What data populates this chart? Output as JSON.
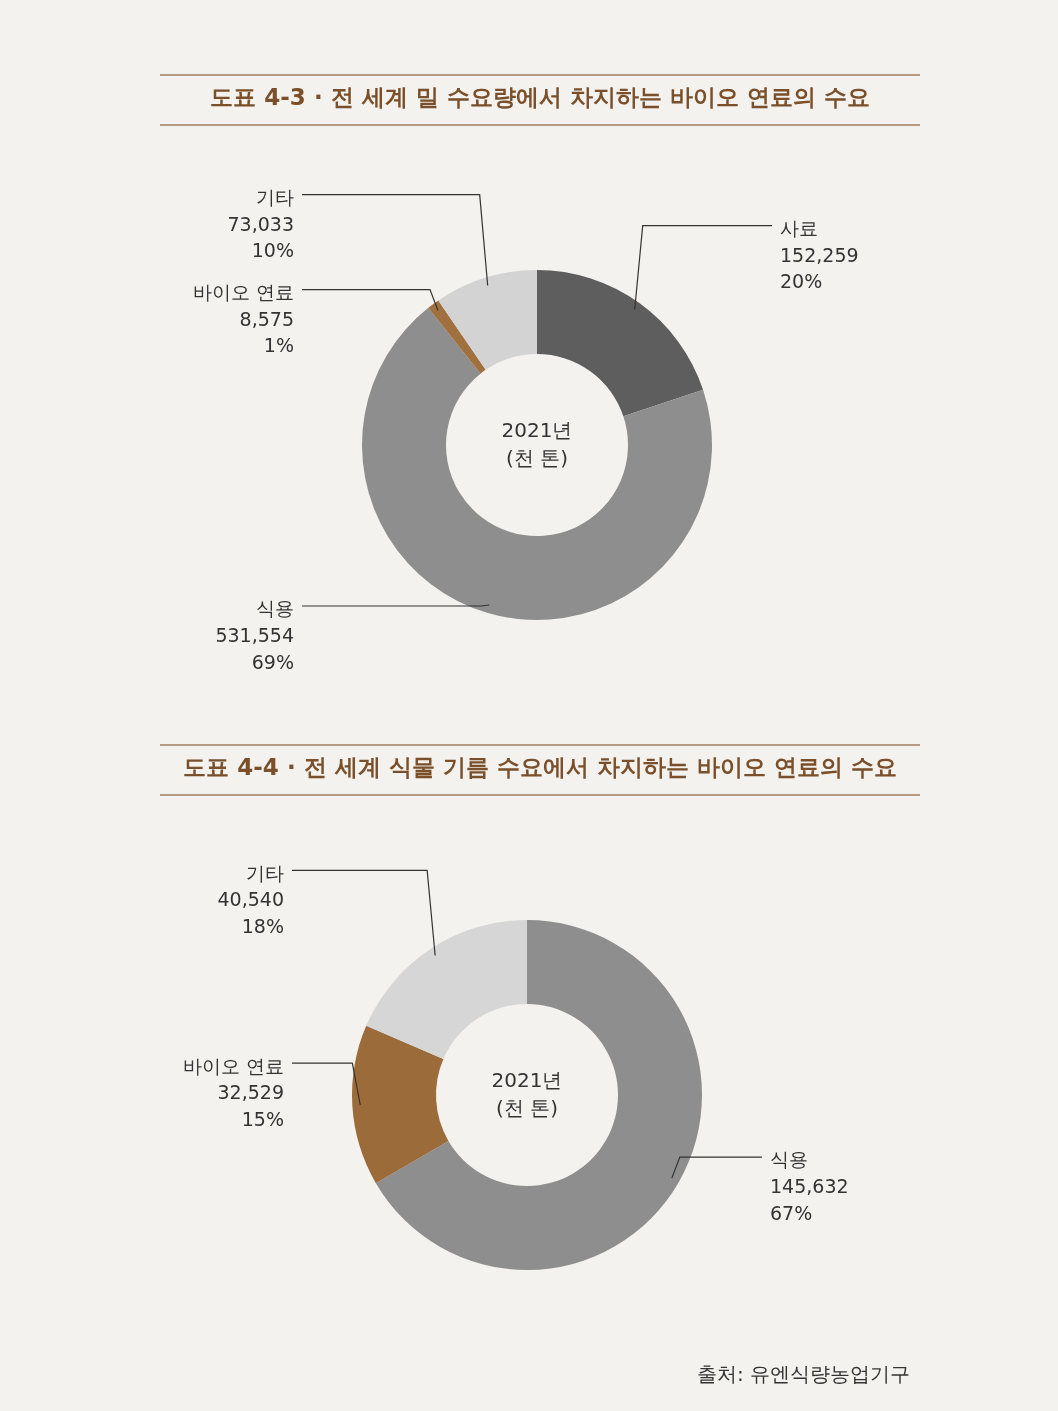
{
  "chart_data": [
    {
      "type": "donut",
      "title": "도표 4-3 · 전 세계 밀 수요량에서 차지하는 바이오 연료의 수요",
      "categories": [
        "사료",
        "식용",
        "바이오 연료",
        "기타"
      ],
      "values": [
        152259,
        531554,
        8575,
        73033
      ],
      "colors": [
        "#5e5e5e",
        "#8e8e8e",
        "#a0703e",
        "#d3d3d3"
      ],
      "value_labels": [
        "152,259\n20%",
        "531,554\n69%",
        "8,575\n1%",
        "73,033\n10%"
      ],
      "annotations": [
        "2021년\n(천 톤)"
      ]
    },
    {
      "type": "donut",
      "title": "도표 4-4 · 전 세계 식물 기름 수요에서 차지하는 바이오 연료의 수요",
      "categories": [
        "식용",
        "바이오 연료",
        "기타"
      ],
      "values": [
        145632,
        32529,
        40540
      ],
      "colors": [
        "#8e8e8e",
        "#9c6b3a",
        "#d6d6d6"
      ],
      "value_labels": [
        "145,632\n67%",
        "32,529\n15%",
        "40,540\n18%"
      ],
      "annotations": [
        "2021년\n(천 톤)",
        "출처: 유엔식량농업기구"
      ]
    }
  ]
}
